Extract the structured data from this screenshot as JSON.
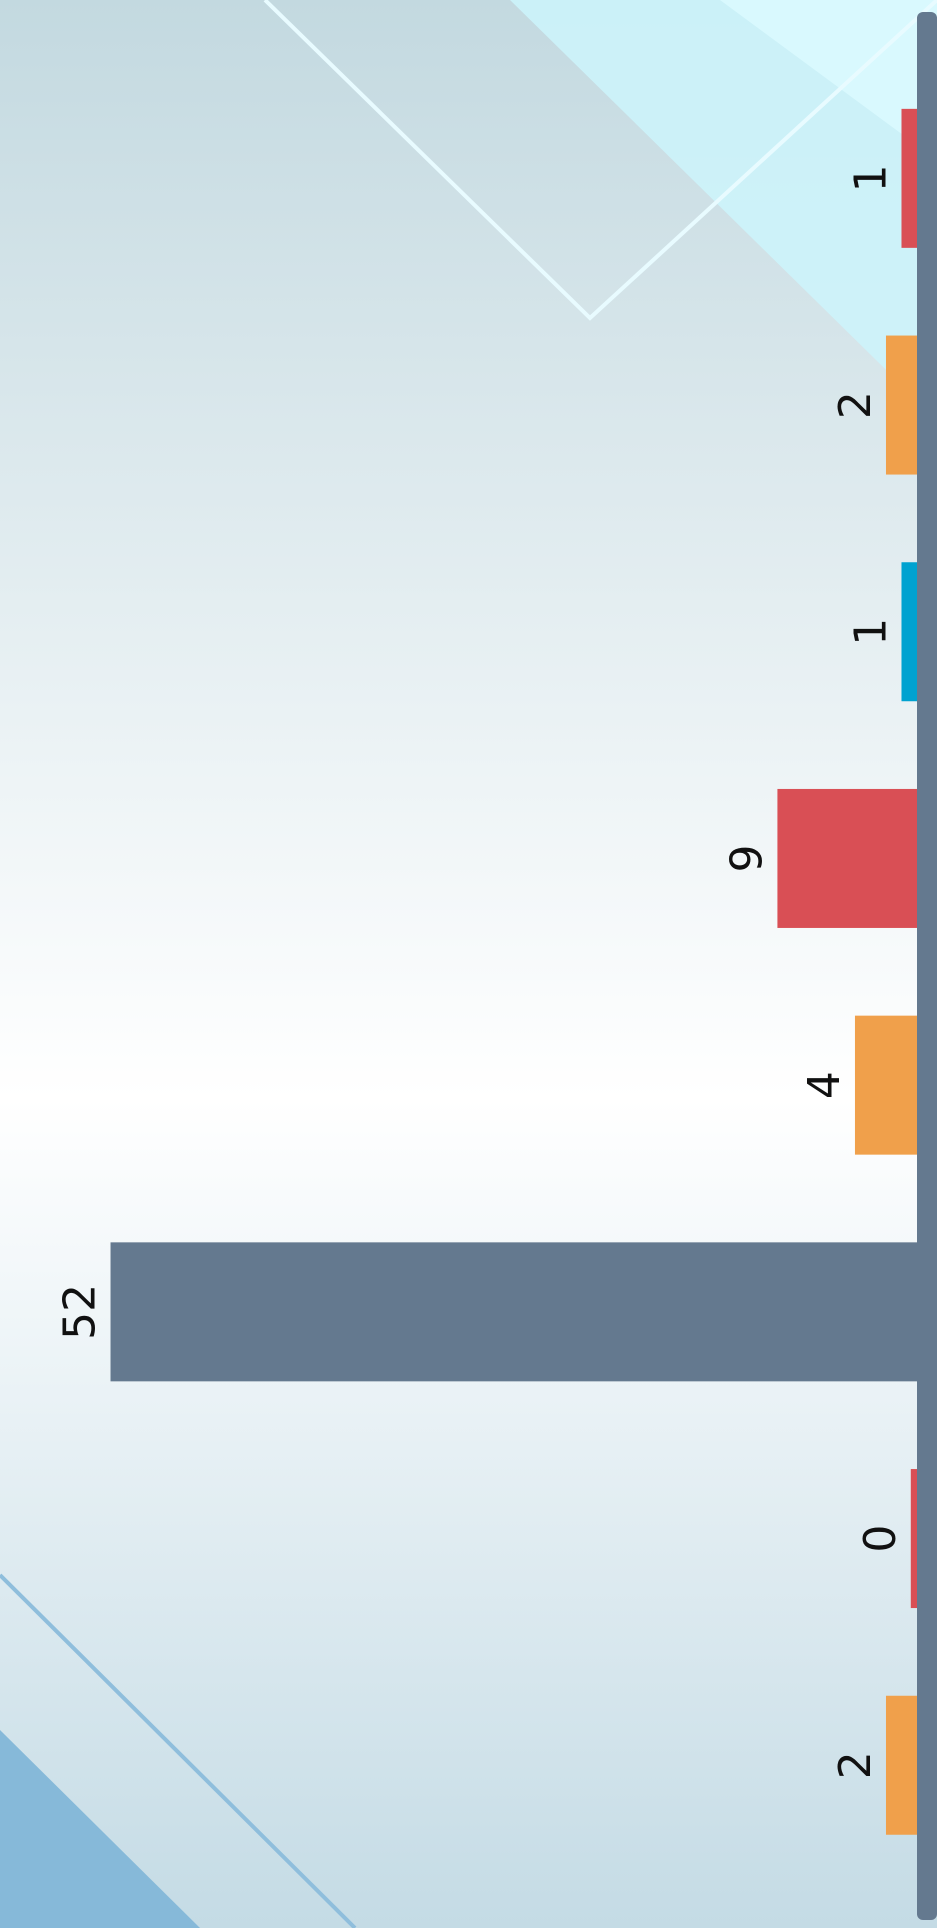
{
  "chart_data": {
    "type": "bar",
    "orientation": "horizontal",
    "categories": [
      null,
      null,
      null,
      null,
      null,
      null,
      null,
      null
    ],
    "values": [
      1,
      2,
      1,
      9,
      4,
      52,
      0.4,
      2
    ],
    "value_labels": [
      "1",
      "2",
      "1",
      "9",
      "4",
      "52",
      "0",
      "2"
    ],
    "colors": [
      "#d94f55",
      "#f0a04b",
      "#00a2d0",
      "#d94f55",
      "#f0a04b",
      "#64798f",
      "#d94f55",
      "#f0a04b"
    ],
    "xlim": [
      0,
      55
    ]
  }
}
